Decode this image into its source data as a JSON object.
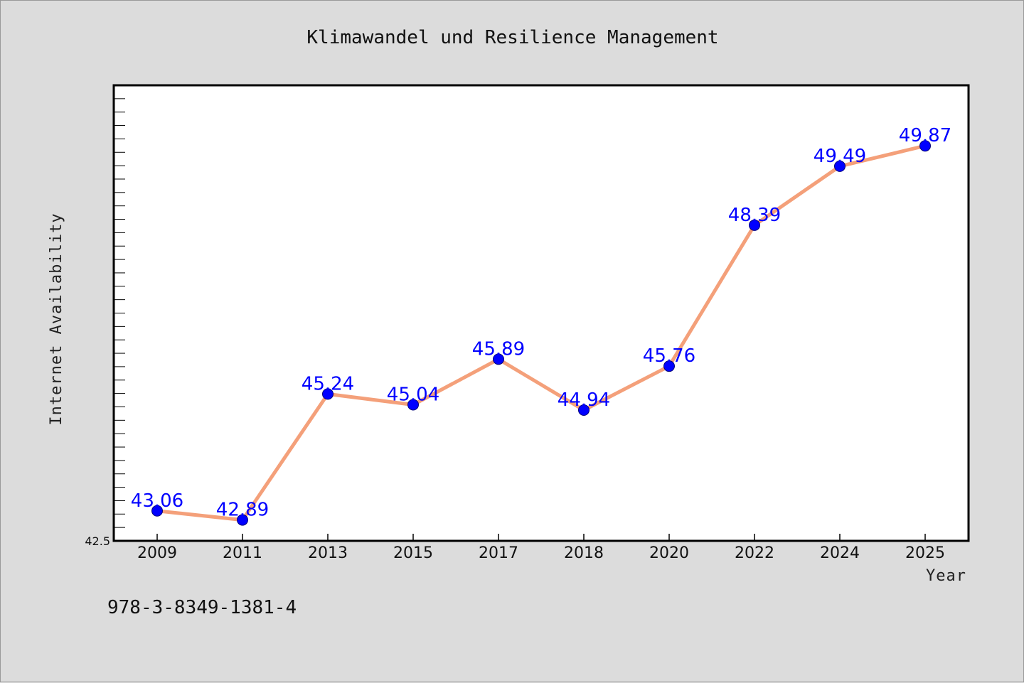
{
  "chart_data": {
    "type": "line",
    "title": "Klimawandel und Resilience Management",
    "xlabel": "Year",
    "ylabel": "Internet Availability",
    "categories": [
      "2009",
      "2011",
      "2013",
      "2015",
      "2017",
      "2018",
      "2020",
      "2022",
      "2024",
      "2025"
    ],
    "series": [
      {
        "values": [
          43.06,
          42.89,
          45.24,
          45.04,
          45.89,
          44.94,
          45.76,
          48.39,
          49.49,
          49.87
        ],
        "line_color": "#f4a07a",
        "marker_color": "#0000ff"
      }
    ],
    "data_labels": [
      "43.06",
      "42.89",
      "45.24",
      "45.04",
      "45.89",
      "44.94",
      "45.76",
      "48.39",
      "49.49",
      "49.87"
    ],
    "ylim": [
      42.5,
      51
    ],
    "y_tick_labels": [
      "42.5"
    ],
    "grid": false,
    "legend": "none"
  },
  "footer": {
    "isbn": "978-3-8349-1381-4"
  },
  "colors": {
    "background": "#dcdcdc",
    "plot_background": "#ffffff",
    "label_color": "#0000ff"
  }
}
